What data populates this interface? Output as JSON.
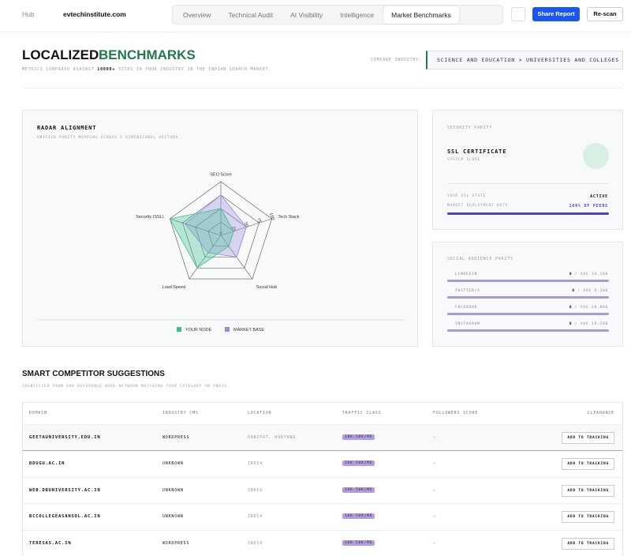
{
  "header": {
    "back": "Hub",
    "domain": "evtechinstitute.com",
    "tabs": [
      "Overview",
      "Technical Audit",
      "AI Visibility",
      "Intelligence",
      "Market Benchmarks"
    ],
    "buttons": [
      "Share Report",
      "Re-scan"
    ]
  },
  "page": {
    "title_1": "LOCALIZED",
    "title_2": "BENCHMARKS",
    "subtitle_pre": "METRICS COMPARED AGAINST",
    "subtitle_num": "10000+",
    "subtitle_post": "SITES IN YOUR INDUSTRY IN THE INDIAN SEARCH MARKET.",
    "industry_label": "COMPARE INDUSTRY:",
    "industry": "SCIENCE AND EDUCATION > UNIVERSITIES AND COLLEGES"
  },
  "chart_data": {
    "type": "radar",
    "title": "RADAR ALIGNMENT",
    "subtitle": "UNIFIED PARITY MAPPING ACROSS 5 DIMENSIONAL VECTORS",
    "categories": [
      "SEO Score",
      "Tech Stack",
      "Social Hub",
      "Load Speed",
      "Security (SSL)"
    ],
    "series": [
      {
        "name": "YOUR NODE",
        "color": "#3fbf8f",
        "values": [
          50,
          25,
          25,
          75,
          100
        ]
      },
      {
        "name": "MARKET BASE",
        "color": "#9b8ce0",
        "values": [
          75,
          50,
          50,
          40,
          70
        ]
      }
    ],
    "rlim": [
      0,
      100
    ],
    "rticks": [
      0,
      25,
      50,
      75,
      100
    ]
  },
  "security": {
    "title": "SECURITY PARITY",
    "cert": "SSL CERTIFICATE",
    "cert_sub": "SYSTEM SCORE",
    "state_label": "YOUR SSL STATE",
    "state": "ACTIVE",
    "rate_label": "MARKET DEPLOYMENT RATE",
    "rate": 100,
    "rate_label_value": "100% OF PEERS"
  },
  "social": {
    "title": "SOCIAL AUDIENCE PARITY",
    "avg_prefix": "/ AVG",
    "rows": [
      {
        "name": "LINKEDIN",
        "value": 0,
        "avg": "34,100"
      },
      {
        "name": "TWITTER/X",
        "value": 0,
        "avg": "9,200"
      },
      {
        "name": "FACEBOOK",
        "value": 0,
        "avg": "28,800"
      },
      {
        "name": "INSTAGRAM",
        "value": 0,
        "avg": "19,200"
      }
    ]
  },
  "competitors": {
    "title": "SMART COMPETITOR SUGGESTIONS",
    "subtitle": "IDENTIFIED FROM OUR REFERENCE NODE NETWORK MATCHING YOUR CATEGORY IN INDIA.",
    "columns": [
      "DOMAIN",
      "INDUSTRY CMS",
      "LOCATION",
      "TRAFFIC CLASS",
      "FOLLOWERS SCORE",
      "CLEARANCE"
    ],
    "rows": [
      [
        "GEETAUNIVERSITY.EDU.IN",
        "WORDPRESS",
        "PANIPAT, HARYANA",
        "10K-50K/MO",
        "—",
        "ADD TO TRACKING"
      ],
      [
        "DDUGU.AC.IN",
        "UNKNOWN",
        "INDIA",
        "10K-50K/MO",
        "—",
        "ADD TO TRACKING"
      ],
      [
        "WEB.DBUNIVERSITY.AC.IN",
        "UNKNOWN",
        "INDIA",
        "10K-50K/MO",
        "—",
        "ADD TO TRACKING"
      ],
      [
        "BCCOLLEGEASANSOL.AC.IN",
        "UNKNOWN",
        "INDIA",
        "10K-50K/MO",
        "—",
        "ADD TO TRACKING"
      ],
      [
        "TERESAS.AC.IN",
        "WORDPRESS",
        "INDIA",
        "10K-50K/MO",
        "—",
        "ADD TO TRACKING"
      ]
    ]
  }
}
